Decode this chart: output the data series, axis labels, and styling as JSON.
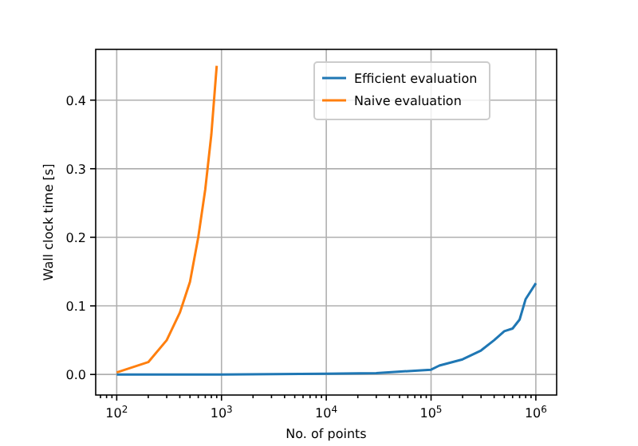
{
  "chart_data": {
    "type": "line",
    "xlabel": "No. of points",
    "ylabel": "Wall clock time [s]",
    "log": "x",
    "grid": true,
    "legend": "top right",
    "xlim": [
      63,
      1580000
    ],
    "ylim": [
      -0.03,
      0.474
    ],
    "xticks": [
      {
        "value": 70,
        "label": null
      },
      {
        "value": 80,
        "label": null
      },
      {
        "value": 90,
        "label": null
      },
      {
        "value": 100,
        "label": "10$^{2}$"
      },
      {
        "value": 200,
        "label": null
      },
      {
        "value": 300,
        "label": null
      },
      {
        "value": 400,
        "label": null
      },
      {
        "value": 500,
        "label": null
      },
      {
        "value": 600,
        "label": null
      },
      {
        "value": 700,
        "label": null
      },
      {
        "value": 800,
        "label": null
      },
      {
        "value": 900,
        "label": null
      },
      {
        "value": 1000,
        "label": "10$^{3}$"
      },
      {
        "value": 2000,
        "label": null
      },
      {
        "value": 3000,
        "label": null
      },
      {
        "value": 4000,
        "label": null
      },
      {
        "value": 5000,
        "label": null
      },
      {
        "value": 6000,
        "label": null
      },
      {
        "value": 7000,
        "label": null
      },
      {
        "value": 8000,
        "label": null
      },
      {
        "value": 9000,
        "label": null
      },
      {
        "value": 10000,
        "label": "10$^{4}$"
      },
      {
        "value": 20000,
        "label": null
      },
      {
        "value": 30000,
        "label": null
      },
      {
        "value": 40000,
        "label": null
      },
      {
        "value": 50000,
        "label": null
      },
      {
        "value": 60000,
        "label": null
      },
      {
        "value": 70000,
        "label": null
      },
      {
        "value": 80000,
        "label": null
      },
      {
        "value": 90000,
        "label": null
      },
      {
        "value": 100000,
        "label": "10$^{5}$"
      },
      {
        "value": 200000,
        "label": null
      },
      {
        "value": 300000,
        "label": null
      },
      {
        "value": 400000,
        "label": null
      },
      {
        "value": 500000,
        "label": null
      },
      {
        "value": 600000,
        "label": null
      },
      {
        "value": 700000,
        "label": null
      },
      {
        "value": 800000,
        "label": null
      },
      {
        "value": 900000,
        "label": null
      },
      {
        "value": 1000000,
        "label": "10$^{6}$"
      }
    ],
    "yticks": [
      {
        "value": 0,
        "label": "0.0"
      },
      {
        "value": 0.1,
        "label": "0.1"
      },
      {
        "value": 0.2,
        "label": "0.2"
      },
      {
        "value": 0.3,
        "label": "0.3"
      },
      {
        "value": 0.4,
        "label": "0.4"
      }
    ],
    "series": [
      {
        "name": "Efficient evaluation",
        "color": "#1f77b4",
        "x": [
          100,
          1000,
          10000,
          30000,
          100000,
          120000,
          200000,
          300000,
          400000,
          500000,
          600000,
          700000,
          800000,
          1000000
        ],
        "values": [
          0,
          0,
          0.001,
          0.002,
          0.007,
          0.013,
          0.022,
          0.035,
          0.05,
          0.063,
          0.067,
          0.08,
          0.11,
          0.133
        ]
      },
      {
        "name": "Naive evaluation",
        "color": "#ff7f0e",
        "x": [
          100,
          200,
          300,
          400,
          500,
          600,
          700,
          800,
          900
        ],
        "values": [
          0.003,
          0.018,
          0.05,
          0.09,
          0.135,
          0.2,
          0.27,
          0.35,
          0.45
        ]
      }
    ]
  }
}
